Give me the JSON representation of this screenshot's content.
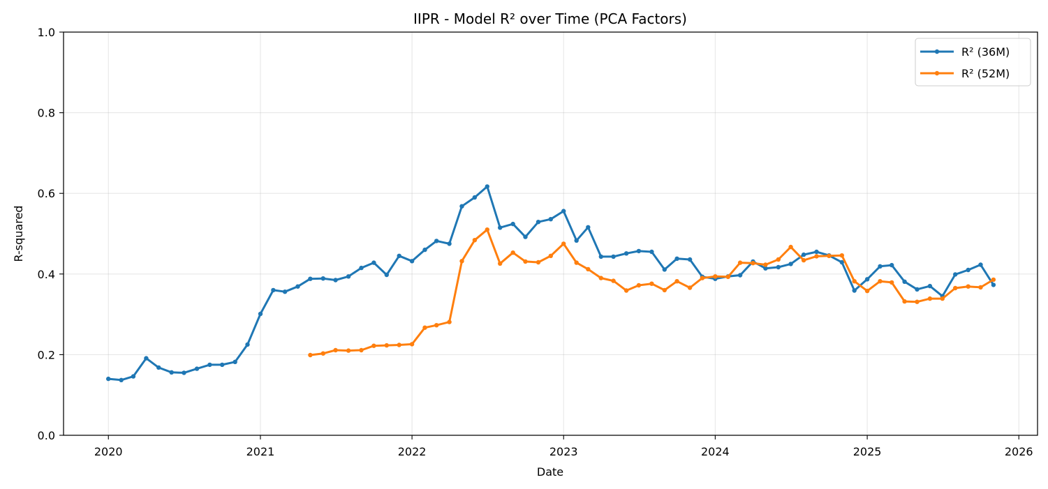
{
  "chart_data": {
    "type": "line",
    "title": "IIPR - Model R² over Time (PCA Factors)",
    "xlabel": "Date",
    "ylabel": "R-squared",
    "xlim": [
      "2019-09-15",
      "2026-02-15"
    ],
    "ylim": [
      0,
      1
    ],
    "x_ticks": [
      "2020",
      "2021",
      "2022",
      "2023",
      "2024",
      "2025",
      "2026"
    ],
    "y_ticks": [
      "0.0",
      "0.2",
      "0.4",
      "0.6",
      "0.8",
      "1.0"
    ],
    "grid": true,
    "legend_position": "top-right",
    "series": [
      {
        "name": "R² (36M)",
        "color": "#1f77b4",
        "start": "2020-01",
        "values": [
          0.14,
          0.137,
          0.146,
          0.191,
          0.168,
          0.156,
          0.155,
          0.165,
          0.175,
          0.175,
          0.182,
          0.225,
          0.301,
          0.36,
          0.356,
          0.369,
          0.388,
          0.389,
          0.385,
          0.394,
          0.415,
          0.428,
          0.398,
          0.445,
          0.432,
          0.46,
          0.482,
          0.475,
          0.568,
          0.59,
          0.617,
          0.515,
          0.524,
          0.492,
          0.529,
          0.536,
          0.556,
          0.483,
          0.516,
          0.443,
          0.443,
          0.451,
          0.457,
          0.455,
          0.411,
          0.438,
          0.436,
          0.393,
          0.388,
          0.394,
          0.397,
          0.431,
          0.414,
          0.417,
          0.425,
          0.448,
          0.455,
          0.446,
          0.429,
          0.359,
          0.387,
          0.419,
          0.422,
          0.381,
          0.362,
          0.37,
          0.345,
          0.399,
          0.41,
          0.423,
          0.373
        ]
      },
      {
        "name": "R² (52M)",
        "color": "#ff7f0e",
        "start": "2021-05",
        "values": [
          0.199,
          0.203,
          0.211,
          0.21,
          0.211,
          0.222,
          0.223,
          0.224,
          0.226,
          0.267,
          0.273,
          0.281,
          0.432,
          0.484,
          0.51,
          0.426,
          0.453,
          0.431,
          0.429,
          0.445,
          0.475,
          0.428,
          0.412,
          0.39,
          0.383,
          0.359,
          0.372,
          0.376,
          0.36,
          0.382,
          0.366,
          0.39,
          0.394,
          0.393,
          0.428,
          0.427,
          0.423,
          0.436,
          0.467,
          0.434,
          0.444,
          0.445,
          0.446,
          0.382,
          0.358,
          0.382,
          0.379,
          0.332,
          0.331,
          0.339,
          0.339,
          0.365,
          0.369,
          0.367,
          0.386
        ]
      }
    ]
  }
}
